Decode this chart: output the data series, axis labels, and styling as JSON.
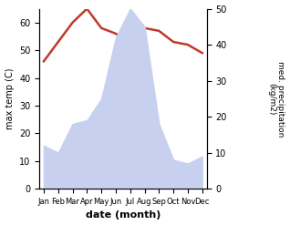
{
  "months": [
    "Jan",
    "Feb",
    "Mar",
    "Apr",
    "May",
    "Jun",
    "Jul",
    "Aug",
    "Sep",
    "Oct",
    "Nov",
    "Dec"
  ],
  "temp": [
    46,
    53,
    60,
    65,
    58,
    56,
    52,
    58,
    57,
    53,
    52,
    49
  ],
  "precip": [
    12,
    10,
    18,
    19,
    25,
    42,
    50,
    45,
    18,
    8,
    7,
    9
  ],
  "temp_color": "#c0392b",
  "precip_fill_color": "#c8d0f0",
  "ylim_temp": [
    0,
    65
  ],
  "ylim_precip": [
    0,
    50
  ],
  "yticks_temp": [
    0,
    10,
    20,
    30,
    40,
    50,
    60
  ],
  "yticks_precip": [
    0,
    10,
    20,
    30,
    40,
    50
  ],
  "xlabel": "date (month)",
  "ylabel_left": "max temp (C)",
  "ylabel_right": "med. precipitation\n(kg/m2)",
  "bg_color": "#ffffff"
}
